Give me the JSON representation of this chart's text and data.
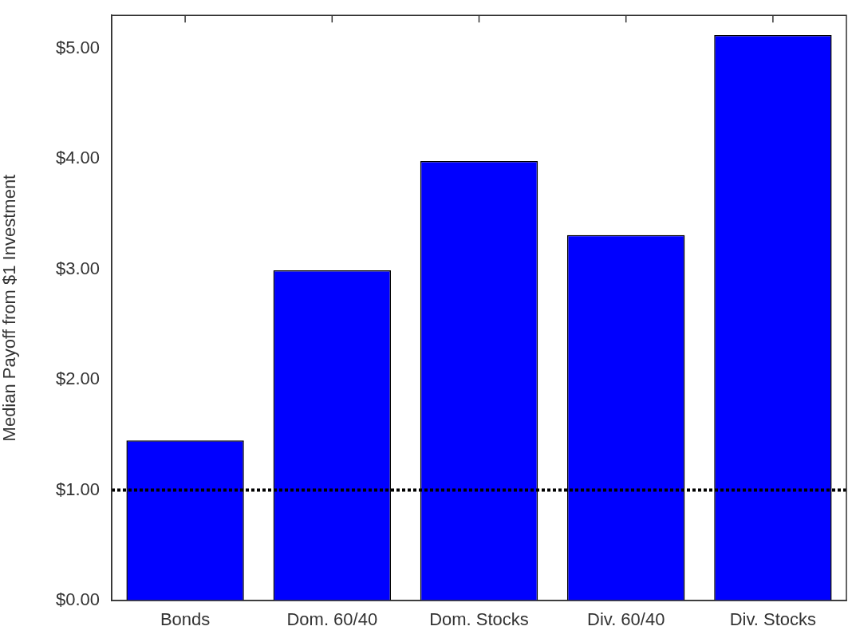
{
  "chart_data": {
    "type": "bar",
    "ylabel": "Median Payoff from $1 Investment",
    "categories": [
      "Bonds",
      "Dom. 60/40",
      "Dom. Stocks",
      "Div. 60/40",
      "Div. Stocks"
    ],
    "values": [
      1.45,
      2.99,
      3.98,
      3.31,
      5.12
    ],
    "color": "#0000ff",
    "ylim": [
      0,
      5.3
    ],
    "yticks": [
      {
        "value": 0,
        "label": "$0.00"
      },
      {
        "value": 1,
        "label": "$1.00"
      },
      {
        "value": 2,
        "label": "$2.00"
      },
      {
        "value": 3,
        "label": "$3.00"
      },
      {
        "value": 4,
        "label": "$4.00"
      },
      {
        "value": 5,
        "label": "$5.00"
      }
    ],
    "ref_lines": [
      {
        "axis": "y",
        "value": 1,
        "label": null,
        "color": "#000000",
        "line_style": "dotted"
      }
    ],
    "grid": false,
    "legend": false
  }
}
